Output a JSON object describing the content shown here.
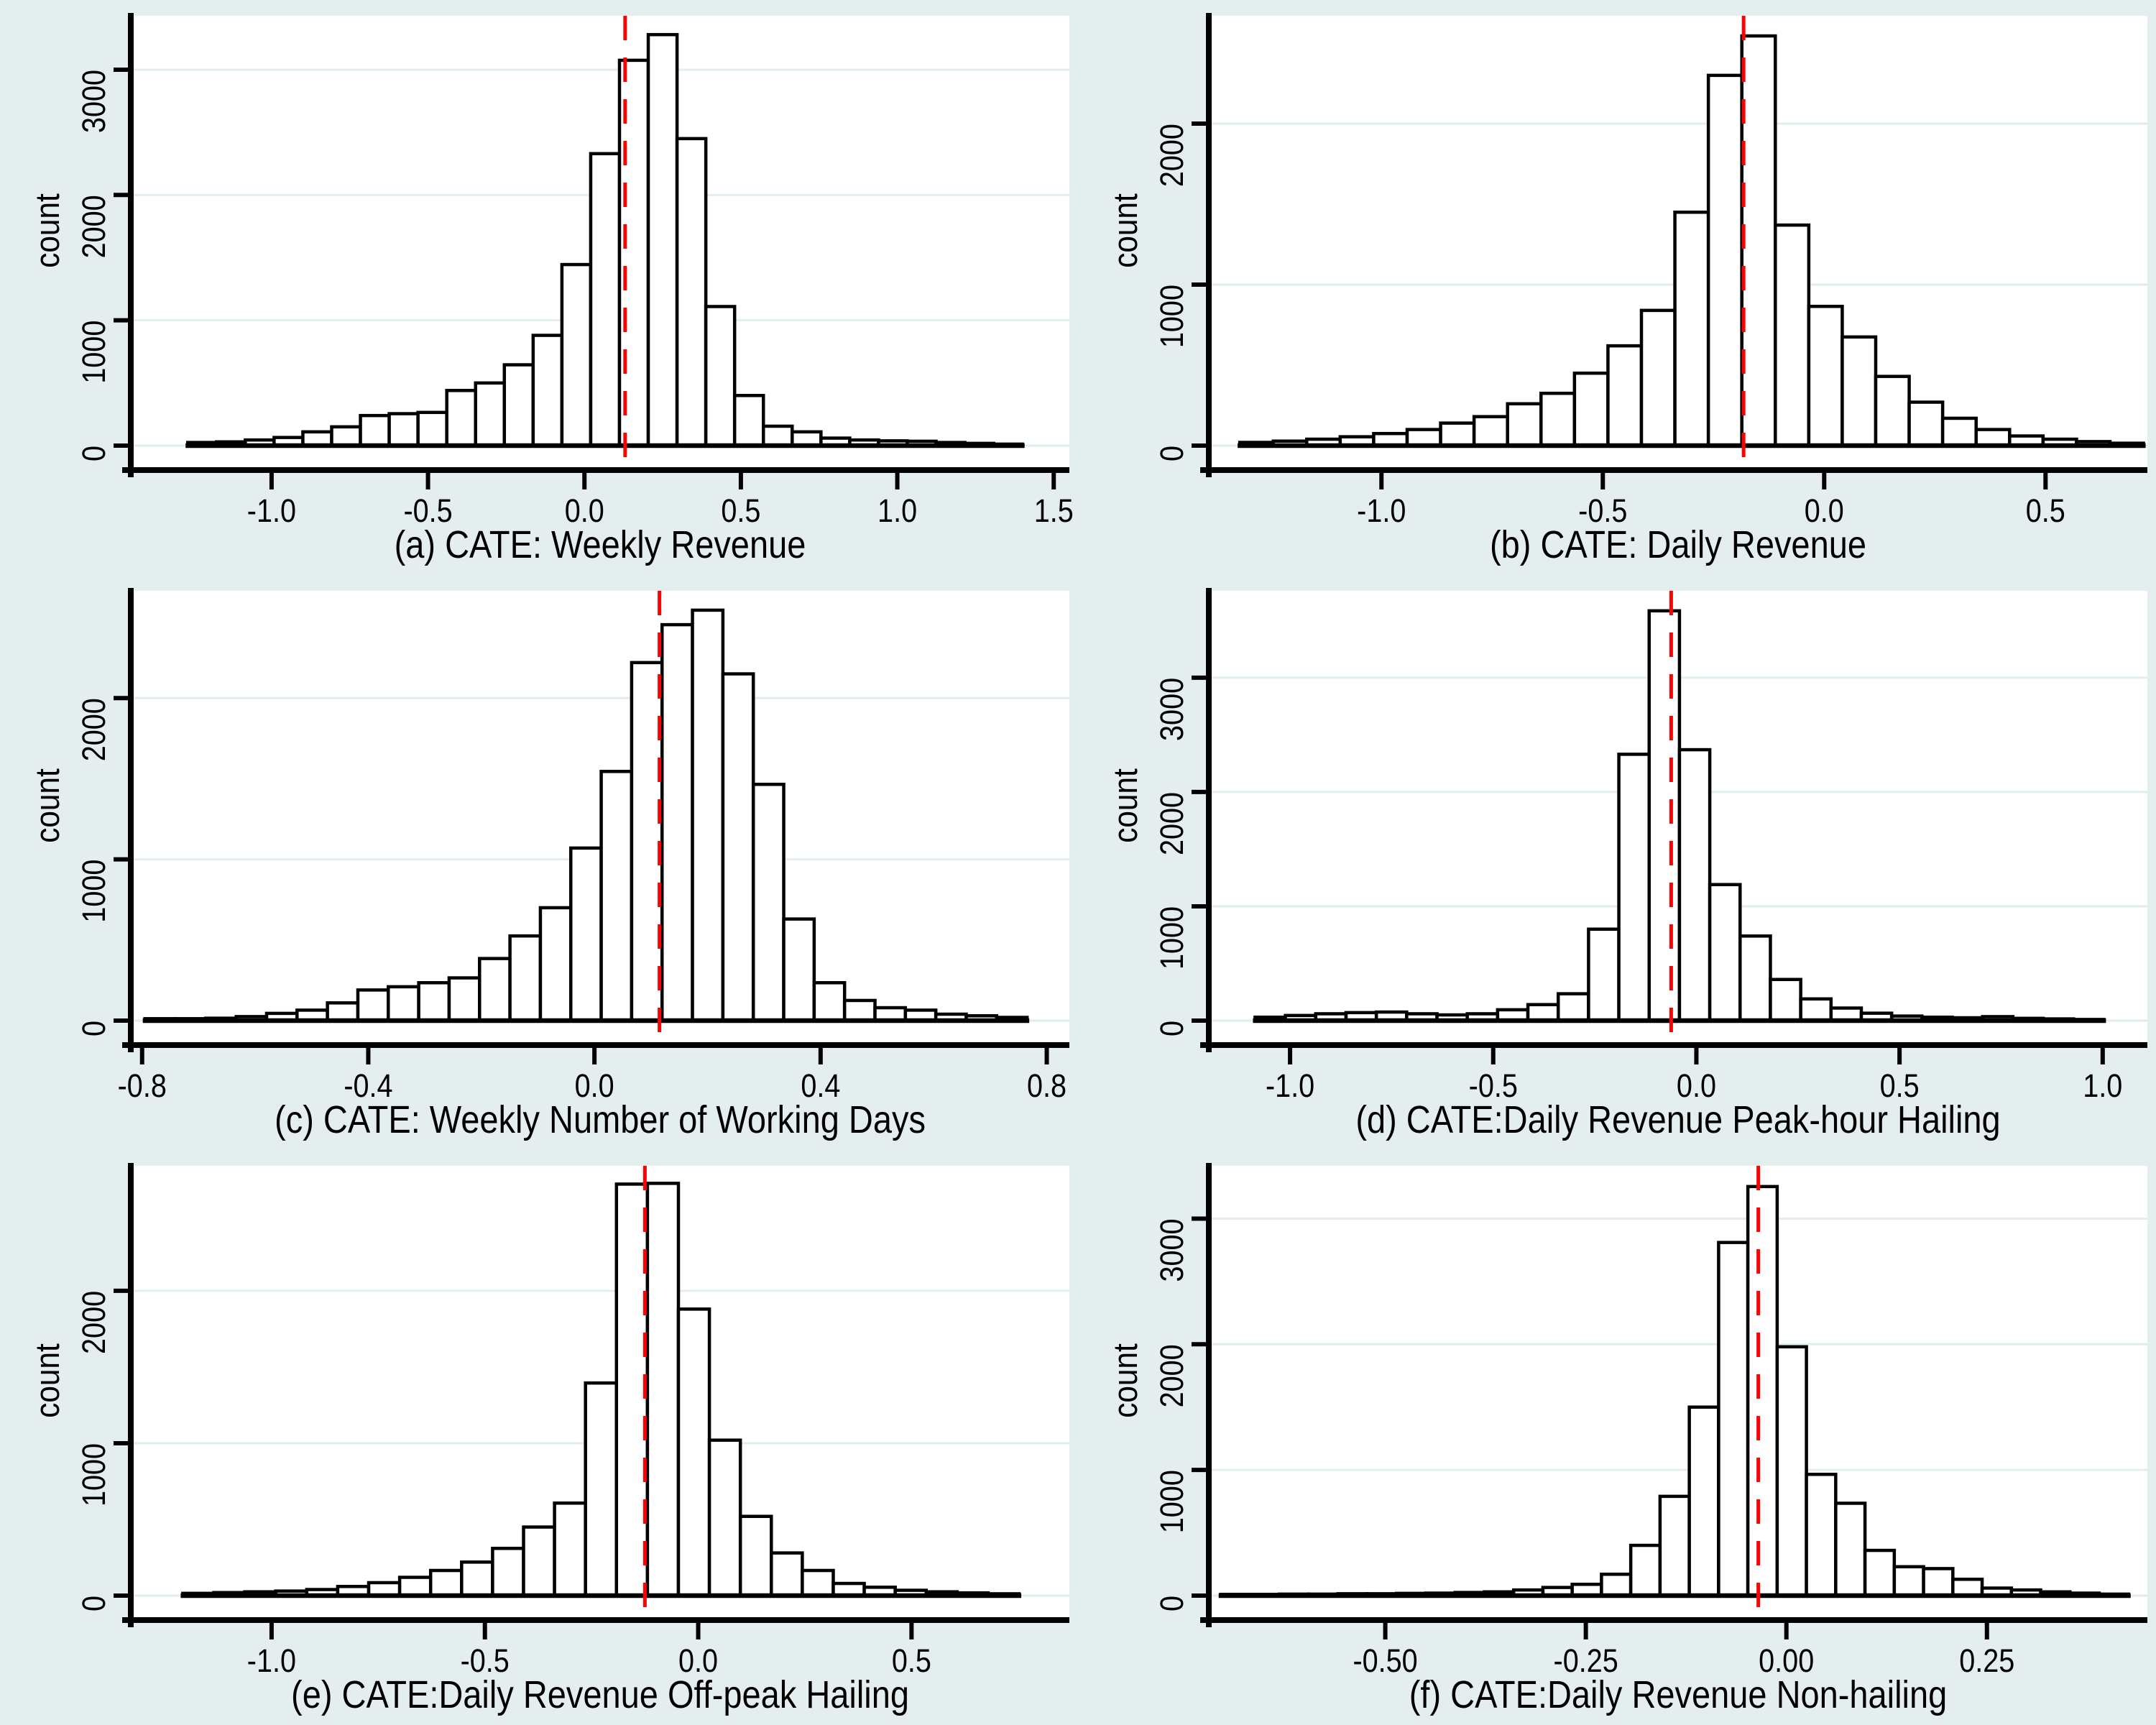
{
  "figure": {
    "background_color": "#e5eeef",
    "plot_background": "#ffffff",
    "gridline_color": "#e2edee",
    "axis_color": "#000000",
    "bar_fill": "#ffffff",
    "bar_stroke": "#000000",
    "ref_line_color": "#f70404",
    "ref_line_style": "dashed"
  },
  "chart_data": [
    {
      "type": "bar",
      "panel": "a",
      "title": "(a) CATE: Weekly Revenue",
      "ylabel": "count",
      "xlabel": "",
      "grid": true,
      "legend": "none",
      "xlim": [
        -1.45,
        1.55
      ],
      "ylim": [
        0,
        3430
      ],
      "x_tick_values": [
        -1.0,
        -0.5,
        0.0,
        0.5,
        1.0,
        1.5
      ],
      "x_tick_labels": [
        "-1.0",
        "-0.5",
        "0.0",
        "0.5",
        "1.0",
        "1.5"
      ],
      "y_tick_values": [
        0,
        1000,
        2000,
        3000
      ],
      "y_tick_labels": [
        "0",
        "1000",
        "2000",
        "3000"
      ],
      "bin_start": -1.268,
      "bin_width": 0.092,
      "ref_line_x": 0.13,
      "counts": [
        25,
        30,
        45,
        65,
        110,
        150,
        240,
        255,
        265,
        440,
        500,
        645,
        880,
        1445,
        2330,
        3075,
        3280,
        2450,
        1110,
        400,
        155,
        110,
        60,
        45,
        38,
        35,
        25,
        18,
        12
      ]
    },
    {
      "type": "bar",
      "panel": "b",
      "title": "(b) CATE: Daily Revenue",
      "ylabel": "count",
      "xlabel": "",
      "grid": true,
      "legend": "none",
      "xlim": [
        -1.39,
        0.73
      ],
      "ylim": [
        0,
        2670
      ],
      "x_tick_values": [
        -1.0,
        -0.5,
        0.0,
        0.5
      ],
      "x_tick_labels": [
        "-1.0",
        "-0.5",
        "0.0",
        "0.5"
      ],
      "y_tick_values": [
        0,
        1000,
        2000
      ],
      "y_tick_labels": [
        "0",
        "1000",
        "2000"
      ],
      "bin_start": -1.32,
      "bin_width": 0.0756,
      "ref_line_x": -0.182,
      "counts": [
        20,
        28,
        40,
        55,
        75,
        100,
        140,
        180,
        260,
        325,
        450,
        620,
        840,
        1450,
        2300,
        2545,
        1370,
        865,
        675,
        430,
        270,
        170,
        100,
        60,
        40,
        25,
        15
      ]
    },
    {
      "type": "bar",
      "panel": "c",
      "title": "(c) CATE: Weekly Number of Working Days",
      "ylabel": "count",
      "xlabel": "",
      "grid": true,
      "legend": "none",
      "xlim": [
        -0.82,
        0.84
      ],
      "ylim": [
        0,
        2665
      ],
      "x_tick_values": [
        -0.8,
        -0.4,
        0.0,
        0.4,
        0.8
      ],
      "x_tick_labels": [
        "-0.8",
        "-0.4",
        "0.0",
        "0.4",
        "0.8"
      ],
      "y_tick_values": [
        0,
        1000,
        2000
      ],
      "y_tick_labels": [
        "0",
        "1000",
        "2000"
      ],
      "bin_start": -0.795,
      "bin_width": 0.0538,
      "ref_line_x": 0.115,
      "counts": [
        12,
        12,
        15,
        25,
        45,
        65,
        110,
        190,
        210,
        235,
        265,
        385,
        525,
        700,
        1070,
        1545,
        2220,
        2455,
        2545,
        2150,
        1465,
        630,
        235,
        125,
        80,
        65,
        40,
        30,
        20
      ]
    },
    {
      "type": "bar",
      "panel": "d",
      "title": "(d) CATE:Daily Revenue Peak-hour Hailing",
      "ylabel": "count",
      "xlabel": "",
      "grid": true,
      "legend": "none",
      "xlim": [
        -1.2,
        1.11
      ],
      "ylim": [
        0,
        3760
      ],
      "x_tick_values": [
        -1.0,
        -0.5,
        0.0,
        0.5,
        1.0
      ],
      "x_tick_labels": [
        "-1.0",
        "-0.5",
        "0.0",
        "0.5",
        "1.0"
      ],
      "y_tick_values": [
        0,
        1000,
        2000,
        3000
      ],
      "y_tick_labels": [
        "0",
        "1000",
        "2000",
        "3000"
      ],
      "bin_start": -1.086,
      "bin_width": 0.0746,
      "ref_line_x": -0.062,
      "counts": [
        30,
        45,
        60,
        70,
        75,
        60,
        50,
        60,
        95,
        140,
        235,
        800,
        2330,
        3585,
        2370,
        1190,
        740,
        360,
        190,
        110,
        65,
        40,
        30,
        25,
        35,
        20,
        15,
        10
      ]
    },
    {
      "type": "bar",
      "panel": "e",
      "title": "(e) CATE:Daily Revenue Off-peak Hailing",
      "ylabel": "count",
      "xlabel": "",
      "grid": true,
      "legend": "none",
      "xlim": [
        -1.33,
        0.87
      ],
      "ylim": [
        0,
        2820
      ],
      "x_tick_values": [
        -1.0,
        -0.5,
        0.0,
        0.5
      ],
      "x_tick_labels": [
        "-1.0",
        "-0.5",
        "0.0",
        "0.5"
      ],
      "y_tick_values": [
        0,
        1000,
        2000
      ],
      "y_tick_labels": [
        "0",
        "1000",
        "2000"
      ],
      "bin_start": -1.208,
      "bin_width": 0.0726,
      "ref_line_x": -0.125,
      "counts": [
        15,
        20,
        25,
        30,
        40,
        60,
        85,
        120,
        165,
        220,
        310,
        450,
        607,
        1395,
        2700,
        2705,
        1880,
        1020,
        520,
        280,
        165,
        80,
        55,
        35,
        25,
        18,
        12
      ]
    },
    {
      "type": "bar",
      "panel": "f",
      "title": "(f) CATE:Daily Revenue Non-hailing",
      "ylabel": "count",
      "xlabel": "",
      "grid": true,
      "legend": "none",
      "xlim": [
        -0.72,
        0.45
      ],
      "ylim": [
        0,
        3420
      ],
      "x_tick_values": [
        -0.5,
        -0.25,
        0.0,
        0.25
      ],
      "x_tick_labels": [
        "-0.50",
        "-0.25",
        "0.00",
        "0.25"
      ],
      "y_tick_values": [
        0,
        1000,
        2000,
        3000
      ],
      "y_tick_labels": [
        "0",
        "1000",
        "2000",
        "3000"
      ],
      "bin_start": -0.705,
      "bin_width": 0.0365,
      "ref_line_x": -0.035,
      "counts": [
        10,
        10,
        12,
        12,
        15,
        15,
        18,
        20,
        25,
        30,
        45,
        65,
        90,
        170,
        400,
        790,
        1500,
        2810,
        3255,
        1980,
        965,
        735,
        360,
        230,
        215,
        130,
        60,
        45,
        30,
        20,
        12
      ]
    }
  ]
}
